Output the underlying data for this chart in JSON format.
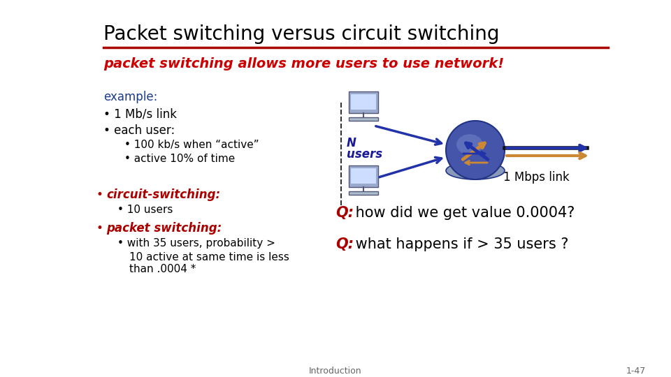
{
  "title": "Packet switching versus circuit switching",
  "subtitle": "packet switching allows more users to use network!",
  "example_label": "example:",
  "bullet1": "1 Mb/s link",
  "bullet2": "each user:",
  "sub1": "100 kb/s when “active”",
  "sub2": "active 10% of time",
  "circuit_label": "circuit-switching:",
  "circuit_sub": "10 users",
  "packet_label": "packet switching:",
  "packet_sub0": "with 35 users, probability >",
  "packet_sub1": "10 active at same time is less",
  "packet_sub2": "than .0004 *",
  "q1_italic": "Q:",
  "q1_rest": " how did we get value 0.0004?",
  "q2_italic": "Q:",
  "q2_rest": " what happens if > 35 users ?",
  "n_label": "N",
  "users_label": "users",
  "link_label": "1 Mbps link",
  "footer_left": "Introduction",
  "footer_right": "1-47",
  "title_color": "#000000",
  "subtitle_color": "#cc0000",
  "example_color": "#1a3a8a",
  "bullet_color": "#000000",
  "circuit_color": "#aa0000",
  "packet_color": "#aa0000",
  "q_color": "#aa0000",
  "footer_color": "#666666",
  "line_color": "#aa0000",
  "bg_color": "#ffffff",
  "n_color": "#1a1a99",
  "router_blue": "#4455aa",
  "router_light": "#7788cc",
  "router_disc": "#8899bb",
  "arrow_blue": "#2233aa",
  "arrow_orange": "#cc8833"
}
